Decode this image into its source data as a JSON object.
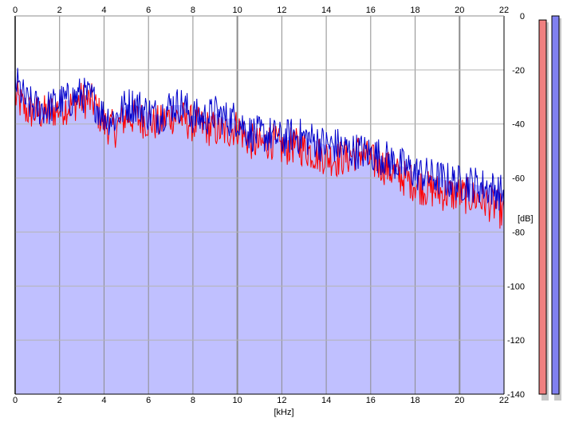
{
  "chart_data": {
    "type": "line",
    "title": "",
    "xlabel": "[kHz]",
    "ylabel": "[dB]",
    "xlim": [
      0,
      22
    ],
    "ylim": [
      -140,
      0
    ],
    "x_ticks": [
      "0",
      "2",
      "4",
      "6",
      "8",
      "10",
      "12",
      "14",
      "16",
      "18",
      "20",
      "22"
    ],
    "y_ticks": [
      "0",
      "-20",
      "-40",
      "-60",
      "-80",
      "-100",
      "-120",
      "-140"
    ],
    "grid": true,
    "legend": "none",
    "series": [
      {
        "color": "#ff0000",
        "x": [
          0,
          0.5,
          1,
          1.5,
          2,
          2.5,
          3,
          3.5,
          4,
          4.5,
          5,
          5.5,
          6,
          6.5,
          7,
          7.5,
          8,
          8.5,
          9,
          9.5,
          10,
          10.5,
          11,
          11.5,
          12,
          12.5,
          13,
          13.5,
          14,
          14.5,
          15,
          15.5,
          16,
          16.5,
          17,
          17.5,
          18,
          18.5,
          19,
          19.5,
          20,
          20.5,
          21,
          21.5,
          22
        ],
        "values": [
          -30,
          -35,
          -36,
          -36,
          -34,
          -33,
          -31,
          -32,
          -40,
          -42,
          -37,
          -38,
          -39,
          -40,
          -37,
          -38,
          -40,
          -41,
          -42,
          -43,
          -41,
          -46,
          -48,
          -46,
          -49,
          -48,
          -49,
          -51,
          -52,
          -53,
          -52,
          -50,
          -54,
          -55,
          -58,
          -60,
          -62,
          -64,
          -65,
          -66,
          -66,
          -67,
          -68,
          -70,
          -73
        ]
      },
      {
        "color": "#0000cc",
        "x": [
          0,
          0.5,
          1,
          1.5,
          2,
          2.5,
          3,
          3.5,
          4,
          4.5,
          5,
          5.5,
          6,
          6.5,
          7,
          7.5,
          8,
          8.5,
          9,
          9.5,
          10,
          10.5,
          11,
          11.5,
          12,
          12.5,
          13,
          13.5,
          14,
          14.5,
          15,
          15.5,
          16,
          16.5,
          17,
          17.5,
          18,
          18.5,
          19,
          19.5,
          20,
          20.5,
          21,
          21.5,
          22
        ],
        "values": [
          -24,
          -32,
          -34,
          -34,
          -32,
          -31,
          -29,
          -31,
          -37,
          -38,
          -33,
          -33,
          -36,
          -37,
          -33,
          -33,
          -37,
          -38,
          -36,
          -38,
          -38,
          -43,
          -44,
          -44,
          -46,
          -44,
          -45,
          -46,
          -48,
          -48,
          -50,
          -50,
          -51,
          -52,
          -54,
          -56,
          -58,
          -59,
          -60,
          -61,
          -62,
          -62,
          -63,
          -64,
          -66
        ]
      }
    ],
    "fill_color": "#c0c0ff",
    "meters": [
      {
        "color": "#f08080",
        "level_db": -1.5
      },
      {
        "color": "#8080f0",
        "level_db": 0
      }
    ]
  }
}
